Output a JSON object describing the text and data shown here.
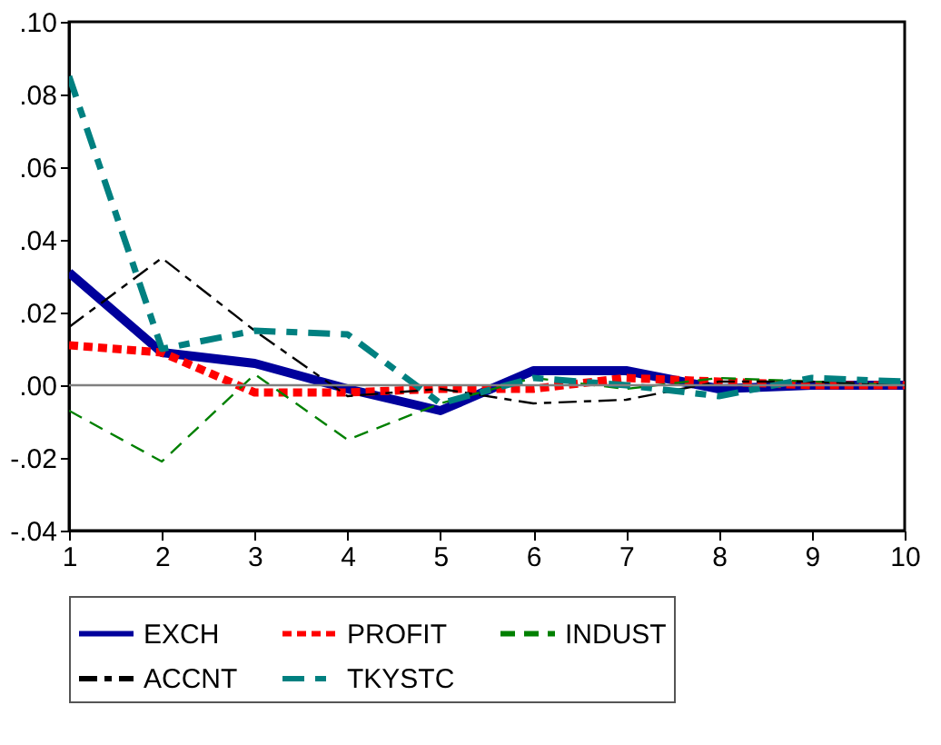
{
  "chart_data": {
    "type": "line",
    "x": [
      1,
      2,
      3,
      4,
      5,
      6,
      7,
      8,
      9,
      10
    ],
    "series": [
      {
        "name": "EXCH",
        "color": "#00009c",
        "line_style": "solid",
        "values": [
          0.031,
          0.009,
          0.006,
          -0.001,
          -0.007,
          0.004,
          0.004,
          -0.001,
          0.0,
          0.0
        ]
      },
      {
        "name": "PROFIT",
        "color": "#ff0000",
        "line_style": "dashed",
        "values": [
          0.011,
          0.009,
          -0.002,
          -0.002,
          -0.001,
          -0.001,
          0.002,
          0.001,
          0.0,
          0.0
        ]
      },
      {
        "name": "INDUST",
        "color": "#008000",
        "line_style": "dashed",
        "values": [
          -0.007,
          -0.021,
          0.003,
          -0.015,
          -0.005,
          0.002,
          -0.001,
          0.002,
          0.001,
          0.0
        ]
      },
      {
        "name": "ACCNT",
        "color": "#000000",
        "line_style": "dashed",
        "values": [
          0.016,
          0.035,
          0.015,
          -0.003,
          -0.001,
          -0.005,
          -0.004,
          0.001,
          0.001,
          0.0
        ]
      },
      {
        "name": "TKYSTC",
        "color": "#008080",
        "line_style": "dashed",
        "values": [
          0.085,
          0.01,
          0.015,
          0.014,
          -0.005,
          0.002,
          0.0,
          -0.003,
          0.002,
          0.001
        ]
      }
    ],
    "xlim": [
      1,
      10
    ],
    "xticks": [
      1,
      2,
      3,
      4,
      5,
      6,
      7,
      8,
      9,
      10
    ],
    "ylim": [
      -0.04,
      0.1
    ],
    "yticks": [
      {
        "value": -0.04,
        "label": "-.04"
      },
      {
        "value": -0.02,
        "label": "-.02"
      },
      {
        "value": 0,
        "label": ".00"
      },
      {
        "value": 0.02,
        "label": ".02"
      },
      {
        "value": 0.04,
        "label": ".04"
      },
      {
        "value": 0.06,
        "label": ".06"
      },
      {
        "value": 0.08,
        "label": ".08"
      },
      {
        "value": 0.1,
        "label": ".10"
      }
    ],
    "ref_lines": [
      {
        "axis": "y",
        "value": 0,
        "color": "#808080"
      }
    ],
    "grid": false,
    "legend": "bottom",
    "marker": "none"
  }
}
